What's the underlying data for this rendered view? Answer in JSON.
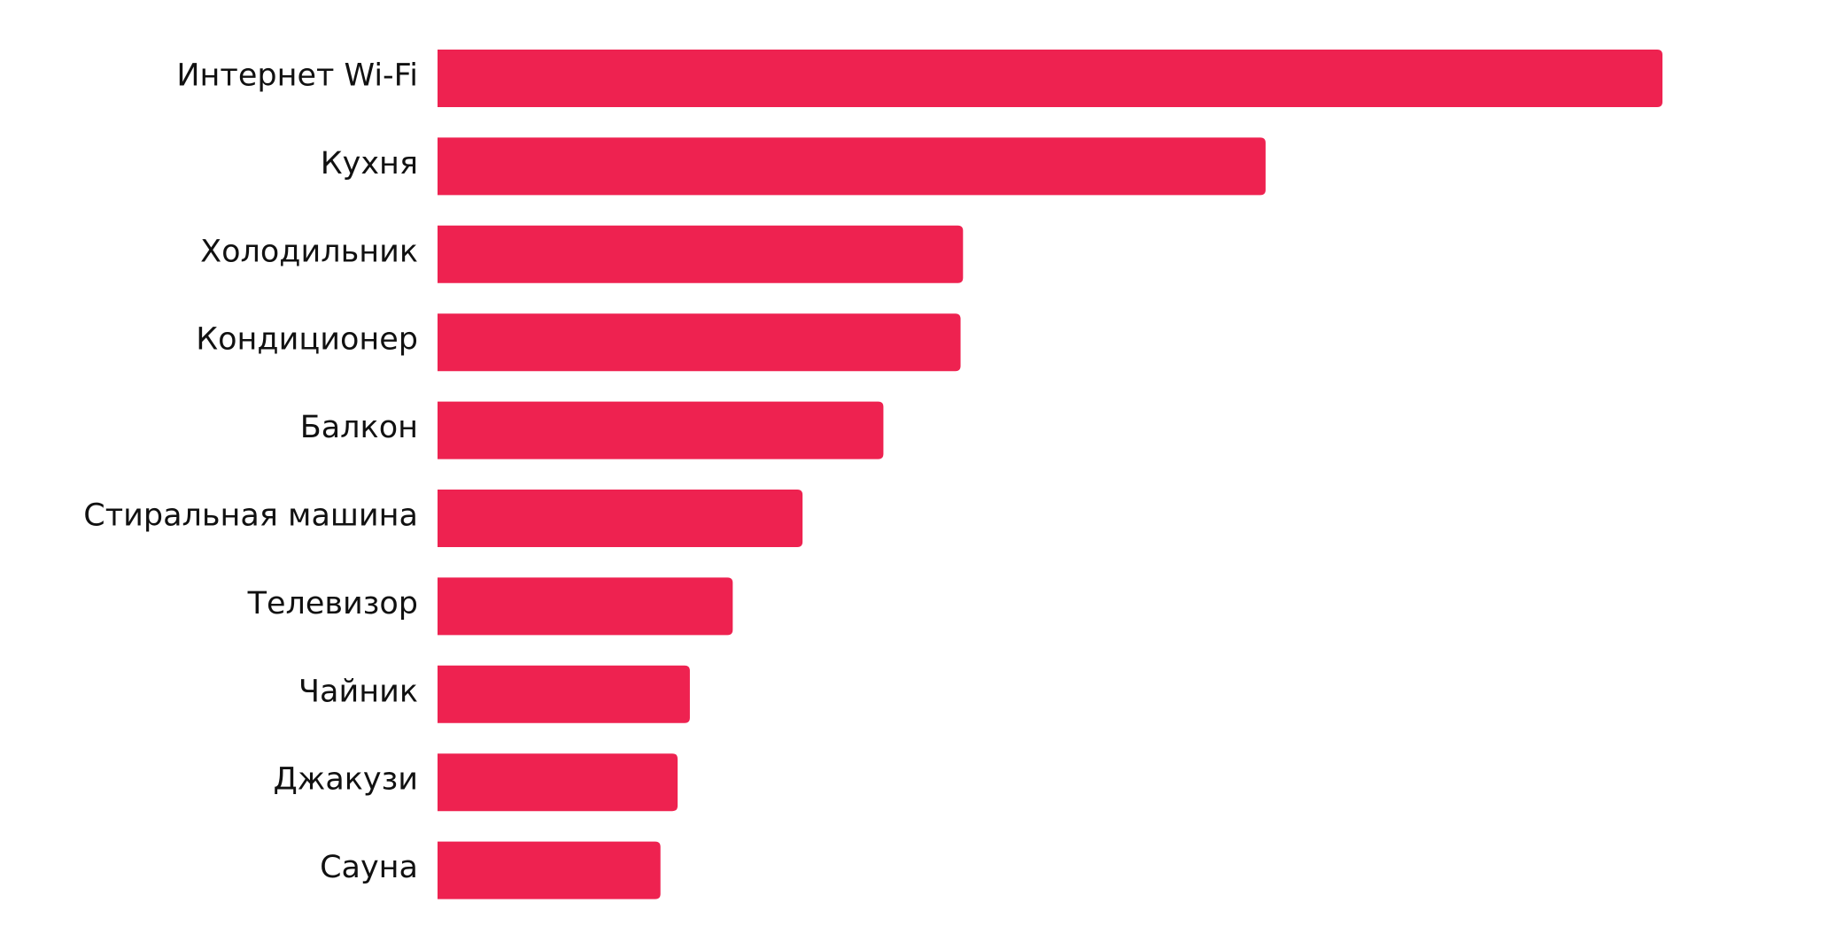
{
  "chart_data": {
    "type": "bar",
    "orientation": "horizontal",
    "categories": [
      "Интернет Wi-Fi",
      "Кухня",
      "Холодильник",
      "Кондиционер",
      "Балкон",
      "Стиральная машина",
      "Телевизор",
      "Чайник",
      "Джакузи",
      "Сауна"
    ],
    "values": [
      100,
      67.6,
      42.9,
      42.7,
      36.4,
      29.8,
      24.1,
      20.6,
      19.6,
      18.2
    ],
    "value_unit": "relative to the longest bar (%)",
    "title": "",
    "xlabel": "",
    "ylabel": "",
    "xlim": [
      0,
      100
    ],
    "grid": false,
    "axes_visible": false,
    "bar_color": "#EE2250"
  }
}
